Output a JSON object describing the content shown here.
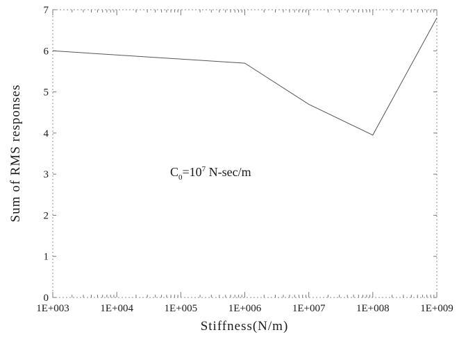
{
  "chart_data": {
    "type": "line",
    "xlabel": "Stiffness(N/m)",
    "ylabel": "Sum of RMS responses",
    "x_scale": "log",
    "xlim": [
      1000,
      1000000000
    ],
    "ylim": [
      0,
      7
    ],
    "x_tick_labels": [
      "1E+003",
      "1E+004",
      "1E+005",
      "1E+006",
      "1E+007",
      "1E+008",
      "1E+009"
    ],
    "y_tick_labels": [
      "0",
      "1",
      "2",
      "3",
      "4",
      "5",
      "6",
      "7"
    ],
    "annotation": {
      "main": "C",
      "subscript": "0",
      "mid": "=10",
      "superscript": "7",
      "tail": " N-sec/m"
    },
    "series": [
      {
        "x": [
          1000,
          1000000,
          10000000,
          100000000,
          1000000000
        ],
        "y": [
          6.0,
          5.7,
          4.7,
          3.95,
          6.8
        ]
      }
    ],
    "grid": false,
    "legend": "none"
  }
}
